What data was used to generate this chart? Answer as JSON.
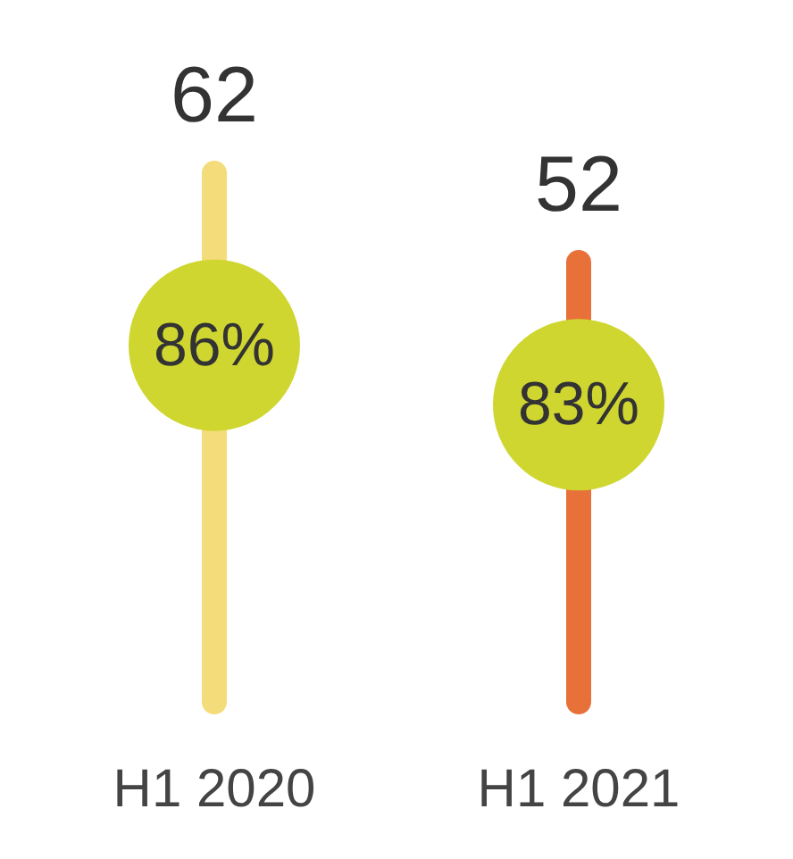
{
  "chart_data": {
    "type": "bar",
    "categories": [
      "H1 2020",
      "H1 2021"
    ],
    "values": [
      62,
      52
    ],
    "colors": [
      "#f5dc7a",
      "#e8713a"
    ],
    "data_labels": true,
    "annotations": [
      "86%",
      "83%"
    ]
  }
}
